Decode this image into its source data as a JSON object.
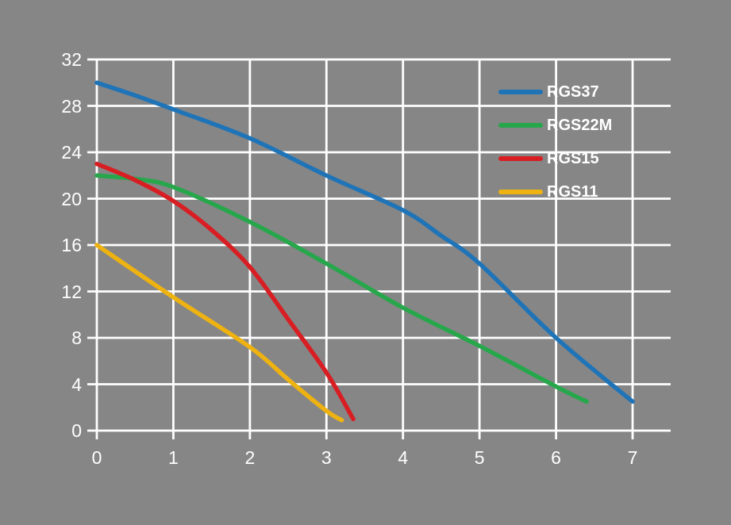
{
  "colors": {
    "background": "#868686",
    "grid": "#ffffff",
    "text": "#ffffff",
    "blue": "#1f74b8",
    "green": "#27a74b",
    "red": "#d81e23",
    "yellow": "#eeb211"
  },
  "chart_data": {
    "type": "line",
    "title": "",
    "xlabel": "",
    "ylabel": "",
    "xlim": [
      0,
      7.5
    ],
    "ylim": [
      0,
      32
    ],
    "x_ticks": [
      0,
      1,
      2,
      3,
      4,
      5,
      6,
      7
    ],
    "y_ticks": [
      0,
      4,
      8,
      12,
      16,
      20,
      24,
      28,
      32
    ],
    "grid": true,
    "legend_position": "inside-upper-right",
    "series": [
      {
        "name": "RGS37",
        "color": "#1f74b8",
        "points": [
          [
            0,
            30
          ],
          [
            0.5,
            28.9
          ],
          [
            1,
            27.7
          ],
          [
            2,
            25.2
          ],
          [
            3,
            22
          ],
          [
            4,
            19
          ],
          [
            4.5,
            16.8
          ],
          [
            5,
            14.4
          ],
          [
            6,
            8
          ],
          [
            7,
            2.5
          ]
        ]
      },
      {
        "name": "RGS22M",
        "color": "#27a74b",
        "points": [
          [
            0,
            22
          ],
          [
            0.5,
            21.7
          ],
          [
            1,
            21
          ],
          [
            2,
            18
          ],
          [
            3,
            14.4
          ],
          [
            4,
            10.6
          ],
          [
            5,
            7.3
          ],
          [
            6,
            3.8
          ],
          [
            6.4,
            2.5
          ]
        ]
      },
      {
        "name": "RGS15",
        "color": "#d81e23",
        "points": [
          [
            0,
            23
          ],
          [
            0.5,
            21.6
          ],
          [
            1,
            19.8
          ],
          [
            1.5,
            17.3
          ],
          [
            2,
            14.1
          ],
          [
            2.5,
            9.6
          ],
          [
            3,
            5
          ],
          [
            3.35,
            1
          ]
        ]
      },
      {
        "name": "RGS11",
        "color": "#eeb211",
        "points": [
          [
            0,
            16
          ],
          [
            1,
            11.5
          ],
          [
            2,
            7.2
          ],
          [
            2.5,
            4.4
          ],
          [
            3,
            1.7
          ],
          [
            3.2,
            0.9
          ]
        ]
      }
    ]
  }
}
